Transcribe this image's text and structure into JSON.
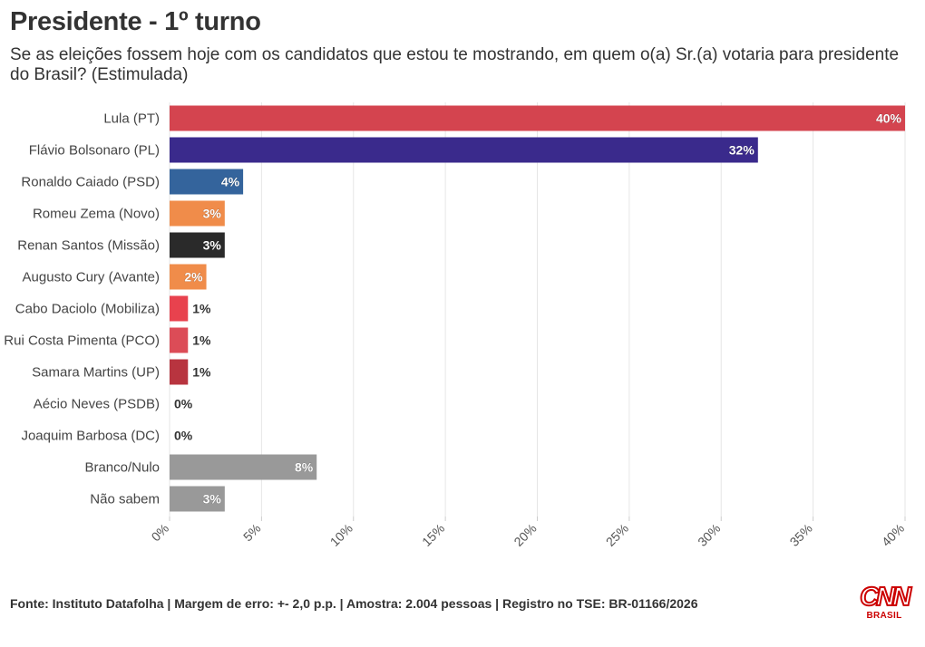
{
  "header": {
    "title": "Presidente - 1º turno",
    "subtitle": "Se as eleições fossem hoje com os candidatos que estou te mostrando, em quem o(a) Sr.(a) votaria para presidente do Brasil? (Estimulada)"
  },
  "footer": {
    "source": "Fonte: Instituto Datafolha | Margem de erro: +- 2,0 p.p. | Amostra: 2.004 pessoas | Registro no TSE: BR-01166/2026"
  },
  "logo": {
    "mark": "CNN",
    "sub": "BRASIL",
    "color": "#cc0000"
  },
  "chart_data": {
    "type": "bar",
    "orientation": "horizontal",
    "categories": [
      "Lula (PT)",
      "Flávio Bolsonaro (PL)",
      "Ronaldo Caiado (PSD)",
      "Romeu Zema (Novo)",
      "Renan Santos (Missão)",
      "Augusto Cury (Avante)",
      "Cabo Daciolo (Mobiliza)",
      "Rui Costa Pimenta (PCO)",
      "Samara Martins (UP)",
      "Aécio Neves (PSDB)",
      "Joaquim Barbosa (DC)",
      "Branco/Nulo",
      "Não sabem"
    ],
    "values": [
      40,
      32,
      4,
      3,
      3,
      2,
      1,
      1,
      1,
      0,
      0,
      8,
      3
    ],
    "value_labels": [
      "40%",
      "32%",
      "4%",
      "3%",
      "3%",
      "2%",
      "1%",
      "1%",
      "1%",
      "0%",
      "0%",
      "8%",
      "3%"
    ],
    "colors": [
      "#d4444f",
      "#3a2a8c",
      "#34649c",
      "#f08c4a",
      "#2a2a2a",
      "#f08c4a",
      "#e8424e",
      "#dc4c57",
      "#b8343f",
      "#cccccc",
      "#cccccc",
      "#999999",
      "#999999"
    ],
    "xlim": [
      0,
      40
    ],
    "xticks": [
      0,
      5,
      10,
      15,
      20,
      25,
      30,
      35,
      40
    ],
    "xtick_labels": [
      "0%",
      "5%",
      "10%",
      "15%",
      "20%",
      "25%",
      "30%",
      "35%",
      "40%"
    ],
    "grid": true,
    "legend": "none"
  }
}
